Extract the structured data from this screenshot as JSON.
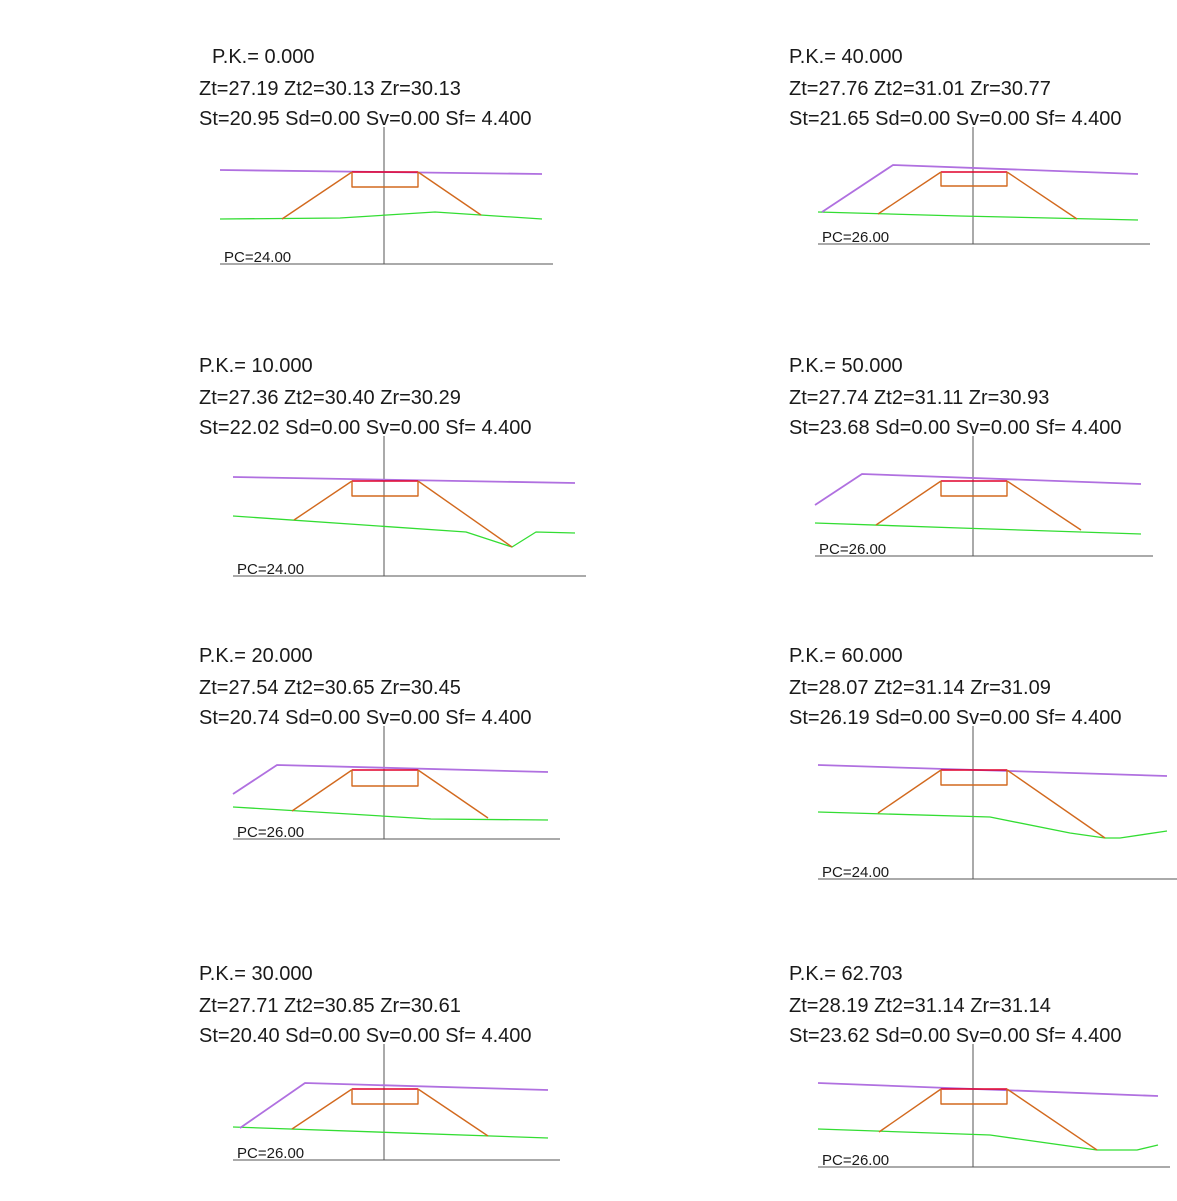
{
  "colors": {
    "rasante": "#b070e0",
    "terrain": "#33dd33",
    "talus": "#d2691e",
    "chaussee": "#e0002a",
    "axis": "#555555",
    "text": "#1a1a1a"
  },
  "profiles": [
    {
      "pk_label": "P.K.=  0.000",
      "z_label": "Zt=27.19 Zt2=30.13 Zr=30.13",
      "s_label": "St=20.95 Sd=0.00 Sv=0.00 Sf= 4.400",
      "pc_label": "PC=24.00"
    },
    {
      "pk_label": "P.K.=  40.000",
      "z_label": "Zt=27.76 Zt2=31.01 Zr=30.77",
      "s_label": "St=21.65 Sd=0.00 Sv=0.00 Sf= 4.400",
      "pc_label": "PC=26.00"
    },
    {
      "pk_label": "P.K.=  10.000",
      "z_label": "Zt=27.36 Zt2=30.40 Zr=30.29",
      "s_label": "St=22.02 Sd=0.00 Sv=0.00 Sf= 4.400",
      "pc_label": "PC=24.00"
    },
    {
      "pk_label": "P.K.=  50.000",
      "z_label": "Zt=27.74 Zt2=31.11 Zr=30.93",
      "s_label": "St=23.68 Sd=0.00 Sv=0.00 Sf= 4.400",
      "pc_label": "PC=26.00"
    },
    {
      "pk_label": "P.K.=  20.000",
      "z_label": "Zt=27.54 Zt2=30.65 Zr=30.45",
      "s_label": "St=20.74 Sd=0.00 Sv=0.00 Sf= 4.400",
      "pc_label": "PC=26.00"
    },
    {
      "pk_label": "P.K.=  60.000",
      "z_label": "Zt=28.07 Zt2=31.14 Zr=31.09",
      "s_label": "St=26.19 Sd=0.00 Sv=0.00 Sf= 4.400",
      "pc_label": "PC=24.00"
    },
    {
      "pk_label": "P.K.=  30.000",
      "z_label": "Zt=27.71 Zt2=30.85 Zr=30.61",
      "s_label": "St=20.40 Sd=0.00 Sv=0.00 Sf= 4.400",
      "pc_label": "PC=26.00"
    },
    {
      "pk_label": "P.K.=  62.703",
      "z_label": "Zt=28.19 Zt2=31.14 Zr=31.14",
      "s_label": "St=23.62 Sd=0.00 Sv=0.00 Sf= 4.400",
      "pc_label": "PC=26.00"
    }
  ]
}
